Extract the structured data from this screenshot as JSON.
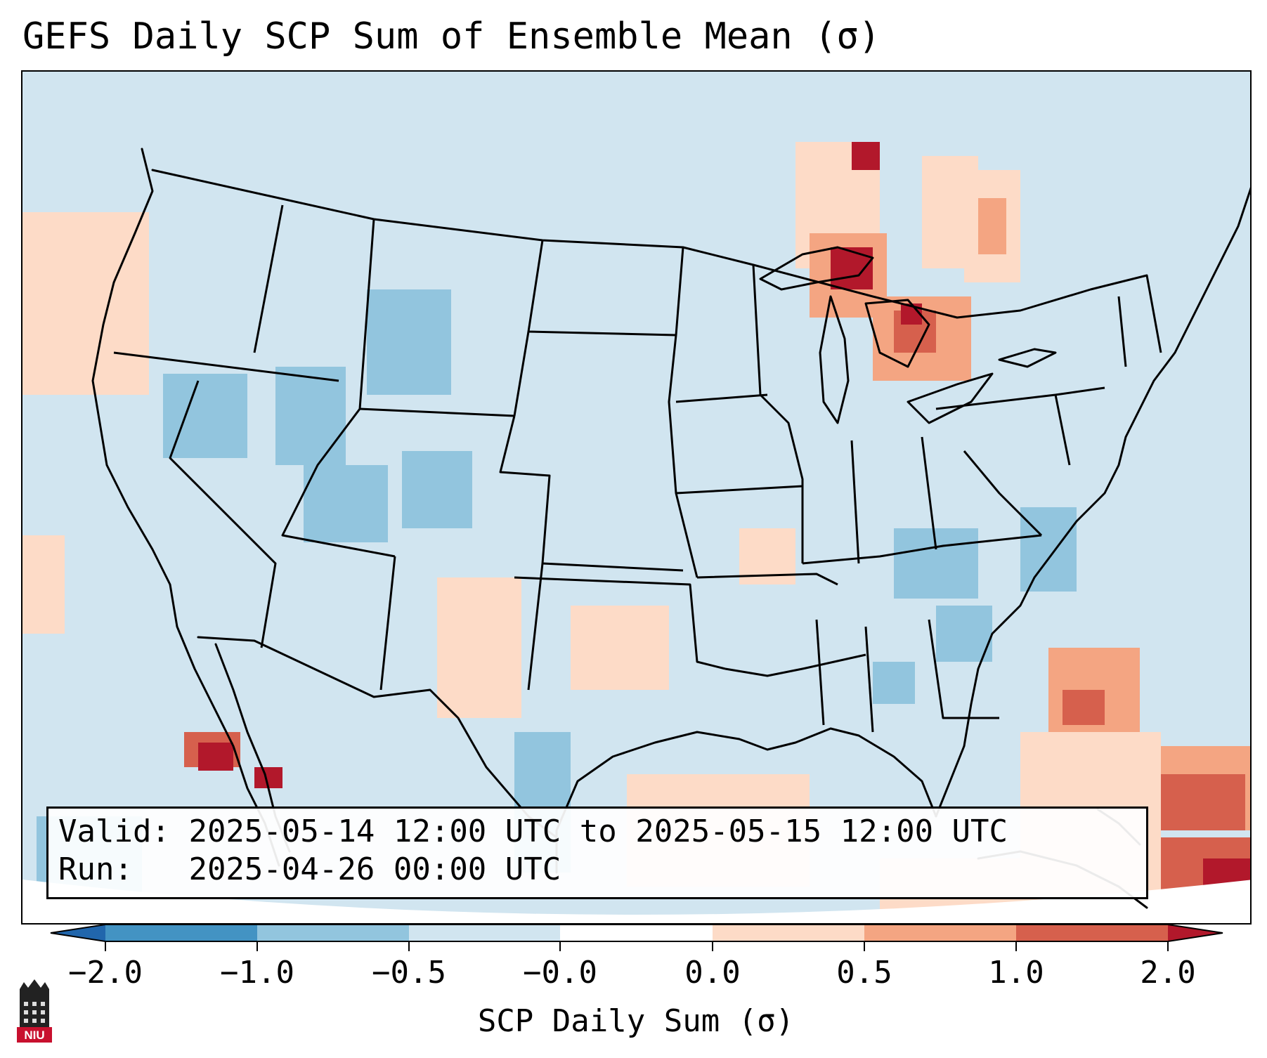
{
  "title": "GEFS Daily SCP Sum of Ensemble Mean (σ)",
  "info": {
    "valid_label": "Valid:",
    "valid_value": "2025-05-14 12:00 UTC to 2025-05-15 12:00 UTC",
    "run_label": "Run:",
    "run_value": "2025-04-26 00:00 UTC"
  },
  "colorbar": {
    "label": "SCP Daily Sum (σ)",
    "ticks": [
      "−2.0",
      "−1.0",
      "−0.5",
      "−0.0",
      "0.0",
      "0.5",
      "1.0",
      "2.0"
    ],
    "bin_colors": [
      "#4393c3",
      "#92c5de",
      "#d1e5f0",
      "#ffffff",
      "#fddbc7",
      "#f4a582",
      "#d6604d"
    ],
    "under_color": "#2166ac",
    "over_color": "#b2182b"
  },
  "logo": {
    "text": "NIU",
    "color": "#c8102e"
  },
  "map": {
    "background_color": "#d1e5f0",
    "feature_line_color": "#000000",
    "cell_levels_meaning": "SCP anomaly bins shown as shaded cells"
  }
}
